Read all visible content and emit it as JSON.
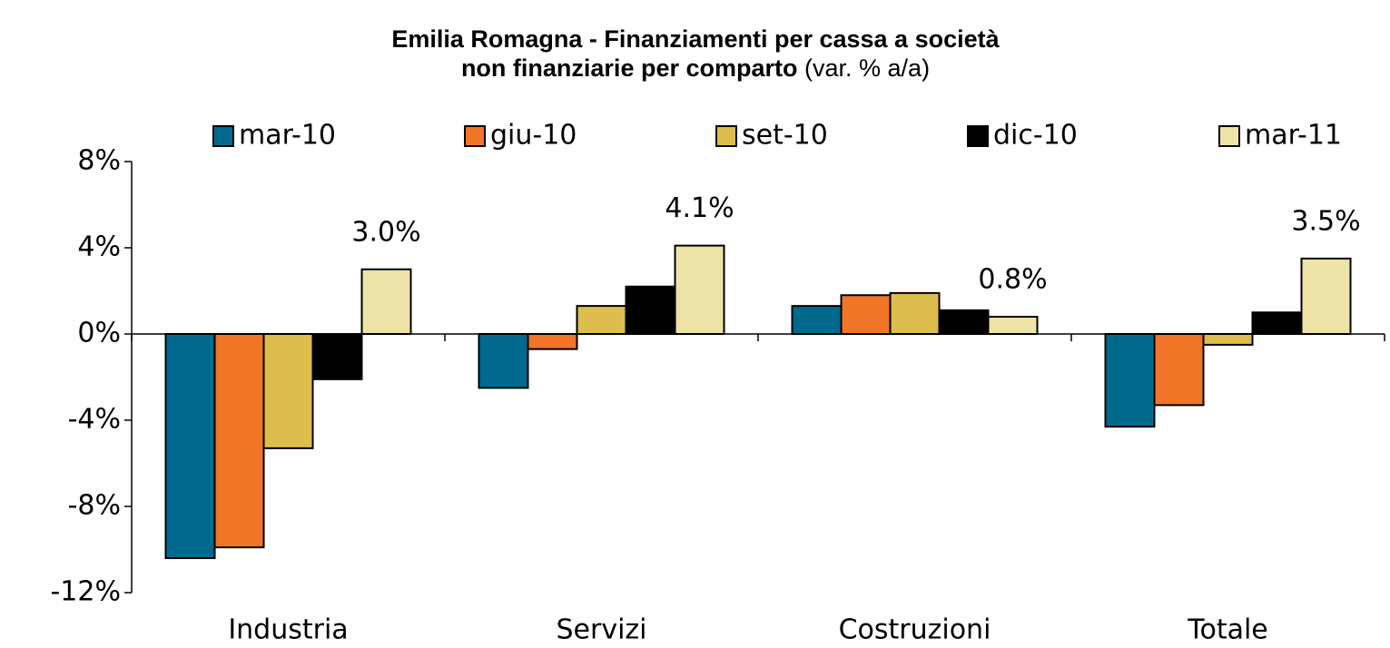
{
  "chart_data": {
    "type": "bar",
    "title_lines": [
      "Emilia Romagna - Finanziamenti per cassa a società",
      "non finanziarie per comparto"
    ],
    "subtitle": "(var. % a/a)",
    "categories": [
      "Industria",
      "Servizi",
      "Costruzioni",
      "Totale"
    ],
    "series": [
      {
        "name": "mar-10",
        "color": "#006a8e",
        "values": [
          -10.4,
          -2.5,
          1.3,
          -4.3
        ]
      },
      {
        "name": "giu-10",
        "color": "#f07526",
        "values": [
          -9.9,
          -0.7,
          1.8,
          -3.3
        ]
      },
      {
        "name": "set-10",
        "color": "#dcbd4d",
        "values": [
          -5.3,
          1.3,
          1.9,
          -0.5
        ]
      },
      {
        "name": "dic-10",
        "color": "#000000",
        "values": [
          -2.1,
          2.2,
          1.1,
          1.0
        ]
      },
      {
        "name": "mar-11",
        "color": "#ede3a6",
        "values": [
          3.0,
          4.1,
          0.8,
          3.5
        ],
        "value_labels": [
          "3.0%",
          "4.1%",
          "0.8%",
          "3.5%"
        ]
      }
    ],
    "ylim": [
      -12,
      8
    ],
    "yticks": [
      {
        "value": -12,
        "label": "-12%"
      },
      {
        "value": -8,
        "label": "-8%"
      },
      {
        "value": -4,
        "label": "-4%"
      },
      {
        "value": 0,
        "label": "0%"
      },
      {
        "value": 4,
        "label": "4%"
      },
      {
        "value": 8,
        "label": "8%"
      }
    ],
    "legend": "top",
    "grid": false
  }
}
